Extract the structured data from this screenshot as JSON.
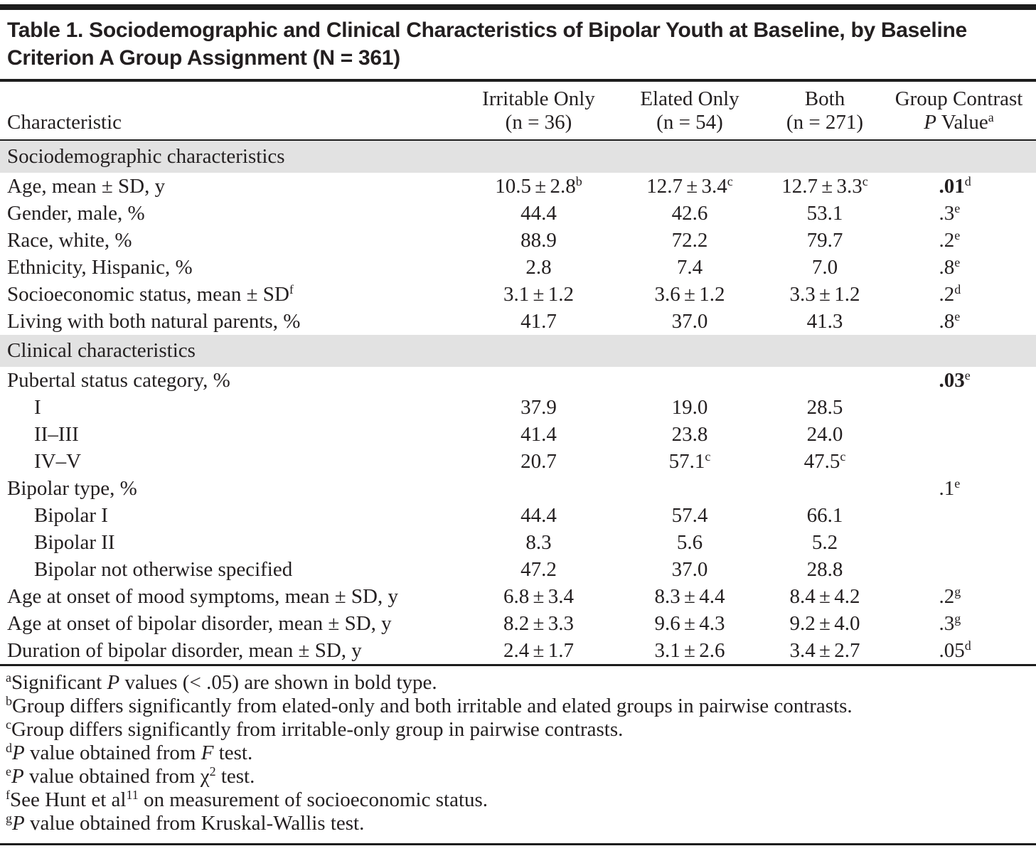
{
  "colors": {
    "text": "#231f20",
    "rule": "#1d1d1d",
    "section_band": "#e2e2e2",
    "background": "#ffffff"
  },
  "table": {
    "title": "Table 1. Sociodemographic and Clinical Characteristics of Bipolar Youth at Baseline, by Baseline Criterion A Group Assignment (N = 361)",
    "columns": {
      "characteristic": "Characteristic",
      "groups": [
        {
          "line1": "Irritable Only",
          "line2": "(n = 36)"
        },
        {
          "line1": "Elated Only",
          "line2": "(n = 54)"
        },
        {
          "line1": "Both",
          "line2": "(n = 271)"
        }
      ],
      "contrast": {
        "line1": "Group Contrast",
        "p": "P",
        "value": " Value",
        "sup": "a"
      }
    },
    "rows": [
      {
        "kind": "section",
        "label": "Sociodemographic characteristics"
      },
      {
        "kind": "data",
        "label": "Age, mean ± SD, y",
        "indent": 0,
        "values": [
          {
            "v": "10.5 ± 2.8",
            "sup": "b"
          },
          {
            "v": "12.7 ± 3.4",
            "sup": "c"
          },
          {
            "v": "12.7 ± 3.3",
            "sup": "c"
          }
        ],
        "p": {
          "v": ".01",
          "sup": "d",
          "bold": true
        }
      },
      {
        "kind": "data",
        "label": "Gender, male, %",
        "indent": 0,
        "values": [
          {
            "v": "44.4"
          },
          {
            "v": "42.6"
          },
          {
            "v": "53.1"
          }
        ],
        "p": {
          "v": ".3",
          "sup": "e"
        }
      },
      {
        "kind": "data",
        "label": "Race, white, %",
        "indent": 0,
        "values": [
          {
            "v": "88.9"
          },
          {
            "v": "72.2"
          },
          {
            "v": "79.7"
          }
        ],
        "p": {
          "v": ".2",
          "sup": "e"
        }
      },
      {
        "kind": "data",
        "label": "Ethnicity, Hispanic, %",
        "indent": 0,
        "values": [
          {
            "v": "2.8"
          },
          {
            "v": "7.4"
          },
          {
            "v": "7.0"
          }
        ],
        "p": {
          "v": ".8",
          "sup": "e"
        }
      },
      {
        "kind": "data",
        "label": "Socioeconomic status, mean ± SD",
        "labelSup": "f",
        "indent": 0,
        "values": [
          {
            "v": "3.1 ± 1.2"
          },
          {
            "v": "3.6 ± 1.2"
          },
          {
            "v": "3.3 ± 1.2"
          }
        ],
        "p": {
          "v": ".2",
          "sup": "d"
        }
      },
      {
        "kind": "data",
        "label": "Living with both natural parents, %",
        "indent": 0,
        "values": [
          {
            "v": "41.7"
          },
          {
            "v": "37.0"
          },
          {
            "v": "41.3"
          }
        ],
        "p": {
          "v": ".8",
          "sup": "e"
        }
      },
      {
        "kind": "section",
        "label": "Clinical characteristics"
      },
      {
        "kind": "data",
        "label": "Pubertal status category, %",
        "indent": 0,
        "values": [
          {},
          {},
          {}
        ],
        "p": {
          "v": ".03",
          "sup": "e",
          "bold": true
        }
      },
      {
        "kind": "data",
        "label": "I",
        "indent": 1,
        "values": [
          {
            "v": "37.9"
          },
          {
            "v": "19.0"
          },
          {
            "v": "28.5"
          }
        ],
        "p": {}
      },
      {
        "kind": "data",
        "label": "II–III",
        "indent": 1,
        "values": [
          {
            "v": "41.4"
          },
          {
            "v": "23.8"
          },
          {
            "v": "24.0"
          }
        ],
        "p": {}
      },
      {
        "kind": "data",
        "label": "IV–V",
        "indent": 1,
        "values": [
          {
            "v": "20.7"
          },
          {
            "v": "57.1",
            "sup": "c"
          },
          {
            "v": "47.5",
            "sup": "c"
          }
        ],
        "p": {}
      },
      {
        "kind": "data",
        "label": "Bipolar type, %",
        "indent": 0,
        "values": [
          {},
          {},
          {}
        ],
        "p": {
          "v": ".1",
          "sup": "e"
        }
      },
      {
        "kind": "data",
        "label": "Bipolar I",
        "indent": 1,
        "values": [
          {
            "v": "44.4"
          },
          {
            "v": "57.4"
          },
          {
            "v": "66.1"
          }
        ],
        "p": {}
      },
      {
        "kind": "data",
        "label": "Bipolar II",
        "indent": 1,
        "values": [
          {
            "v": "8.3"
          },
          {
            "v": "5.6"
          },
          {
            "v": "5.2"
          }
        ],
        "p": {}
      },
      {
        "kind": "data",
        "label": "Bipolar not otherwise specified",
        "indent": 1,
        "values": [
          {
            "v": "47.2"
          },
          {
            "v": "37.0"
          },
          {
            "v": "28.8"
          }
        ],
        "p": {}
      },
      {
        "kind": "data",
        "label": "Age at onset of mood symptoms, mean ± SD, y",
        "indent": 0,
        "values": [
          {
            "v": "6.8 ± 3.4"
          },
          {
            "v": "8.3 ± 4.4"
          },
          {
            "v": "8.4 ± 4.2"
          }
        ],
        "p": {
          "v": ".2",
          "sup": "g"
        }
      },
      {
        "kind": "data",
        "label": "Age at onset of bipolar disorder, mean ± SD, y",
        "indent": 0,
        "values": [
          {
            "v": "8.2 ± 3.3"
          },
          {
            "v": "9.6 ± 4.3"
          },
          {
            "v": "9.2 ± 4.0"
          }
        ],
        "p": {
          "v": ".3",
          "sup": "g"
        }
      },
      {
        "kind": "data",
        "label": "Duration of bipolar disorder, mean ± SD, y",
        "indent": 0,
        "values": [
          {
            "v": "2.4 ± 1.7"
          },
          {
            "v": "3.1 ± 2.6"
          },
          {
            "v": "3.4 ± 2.7"
          }
        ],
        "p": {
          "v": ".05",
          "sup": "d"
        }
      }
    ],
    "footnotes": [
      {
        "marker": "a",
        "parts": [
          {
            "t": "Significant "
          },
          {
            "t": "P",
            "i": true
          },
          {
            "t": " values (< .05) are shown in bold type."
          }
        ]
      },
      {
        "marker": "b",
        "parts": [
          {
            "t": "Group differs significantly from elated-only and both irritable and elated groups in pairwise contrasts."
          }
        ]
      },
      {
        "marker": "c",
        "parts": [
          {
            "t": "Group differs significantly from irritable-only group in pairwise contrasts."
          }
        ]
      },
      {
        "marker": "d",
        "parts": [
          {
            "t": "P",
            "i": true
          },
          {
            "t": " value obtained from "
          },
          {
            "t": "F",
            "i": true
          },
          {
            "t": " test."
          }
        ]
      },
      {
        "marker": "e",
        "parts": [
          {
            "t": "P",
            "i": true
          },
          {
            "t": " value obtained from χ"
          },
          {
            "t": "2",
            "sup": true
          },
          {
            "t": " test."
          }
        ]
      },
      {
        "marker": "f",
        "parts": [
          {
            "t": "See Hunt et al"
          },
          {
            "t": "11",
            "sup": true
          },
          {
            "t": " on measurement of socioeconomic status."
          }
        ]
      },
      {
        "marker": "g",
        "parts": [
          {
            "t": "P",
            "i": true
          },
          {
            "t": " value obtained from Kruskal-Wallis test."
          }
        ]
      }
    ]
  }
}
